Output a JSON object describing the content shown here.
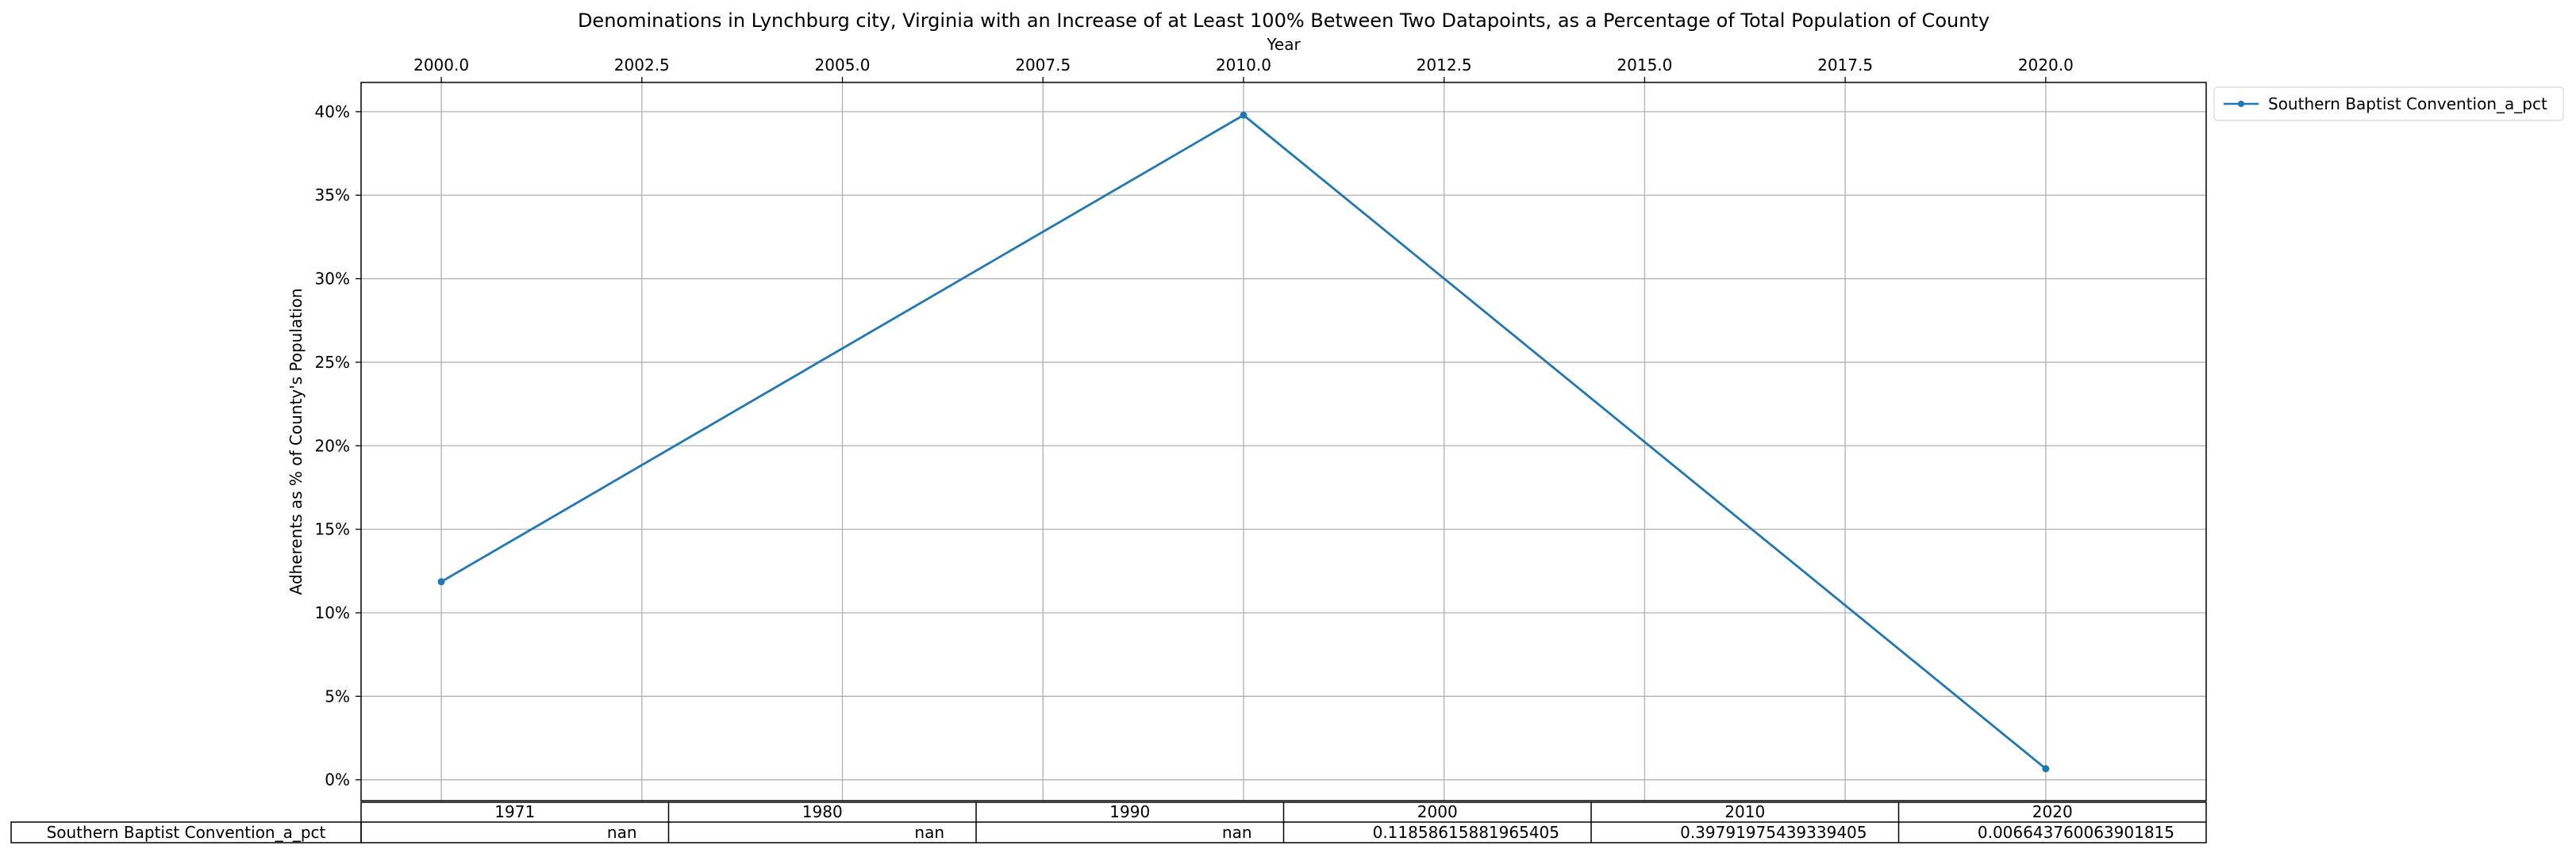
{
  "chart_data": {
    "type": "line",
    "title": "Denominations in Lynchburg city, Virginia with an Increase of at Least 100% Between Two Datapoints, as a Percentage of Total Population of County",
    "xlabel": "Year",
    "ylabel": "Adherents as % of County's Population",
    "xlim": [
      1999.0,
      2022.0
    ],
    "ylim": [
      -0.0125,
      0.4175
    ],
    "x_ticks": [
      2000.0,
      2002.5,
      2005.0,
      2007.5,
      2010.0,
      2012.5,
      2015.0,
      2017.5,
      2020.0
    ],
    "x_tick_labels": [
      "2000.0",
      "2002.5",
      "2005.0",
      "2007.5",
      "2010.0",
      "2012.5",
      "2015.0",
      "2017.5",
      "2020.0"
    ],
    "x_axis_position": "top",
    "y_ticks": [
      0,
      0.05,
      0.1,
      0.15,
      0.2,
      0.25,
      0.3,
      0.35,
      0.4
    ],
    "y_tick_labels": [
      "0%",
      "5%",
      "10%",
      "15%",
      "20%",
      "25%",
      "30%",
      "35%",
      "40%"
    ],
    "grid": true,
    "legend_position": "outside top-right",
    "series": [
      {
        "name": "Southern Baptist Convention_a_pct",
        "color": "#1f77b4",
        "marker": "dot",
        "x": [
          2000,
          2010,
          2020
        ],
        "y": [
          0.11858615881965405,
          0.39791975439339405,
          0.006643760063901815
        ]
      }
    ],
    "table": {
      "col_labels": [
        "1971",
        "1980",
        "1990",
        "2000",
        "2010",
        "2020"
      ],
      "rows": [
        {
          "label": "Southern Baptist Convention_a_pct",
          "cells": [
            "nan",
            "nan",
            "nan",
            "0.11858615881965405",
            "0.39791975439339405",
            "0.006643760063901815"
          ]
        }
      ]
    }
  }
}
